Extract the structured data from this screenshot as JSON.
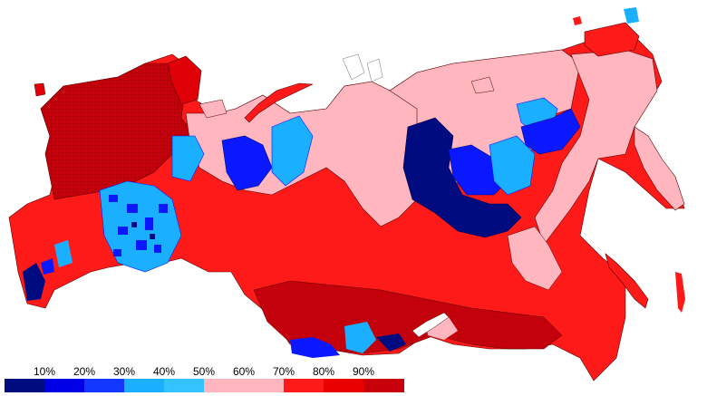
{
  "legend": {
    "tick_labels": [
      "10%",
      "20%",
      "30%",
      "40%",
      "50%",
      "60%",
      "70%",
      "80%",
      "90%"
    ],
    "bins": [
      {
        "range": "0-10%",
        "color": "#000b80"
      },
      {
        "range": "10-20%",
        "color": "#0000e6"
      },
      {
        "range": "20-30%",
        "color": "#1437ff"
      },
      {
        "range": "30-40%",
        "color": "#1ab0ff"
      },
      {
        "range": "40-50%",
        "color": "#33c3ff"
      },
      {
        "range": "50-60%",
        "color": "#ffb6be"
      },
      {
        "range": "60-70%",
        "color": "#ffb6be"
      },
      {
        "range": "70-80%",
        "color": "#ff1a1a"
      },
      {
        "range": "80-90%",
        "color": "#ea0000"
      },
      {
        "range": "90-100%",
        "color": "#c8000b"
      }
    ]
  },
  "colors": {
    "very_high": "#c8000b",
    "high": "#ff1a1a",
    "medium_high": "#ff3a3a",
    "pink": "#ffb6be",
    "light_blue": "#1ab0ff",
    "blue": "#0a18ff",
    "dark_blue": "#000b80",
    "border": "#5a0000",
    "water": "#ffffff"
  }
}
